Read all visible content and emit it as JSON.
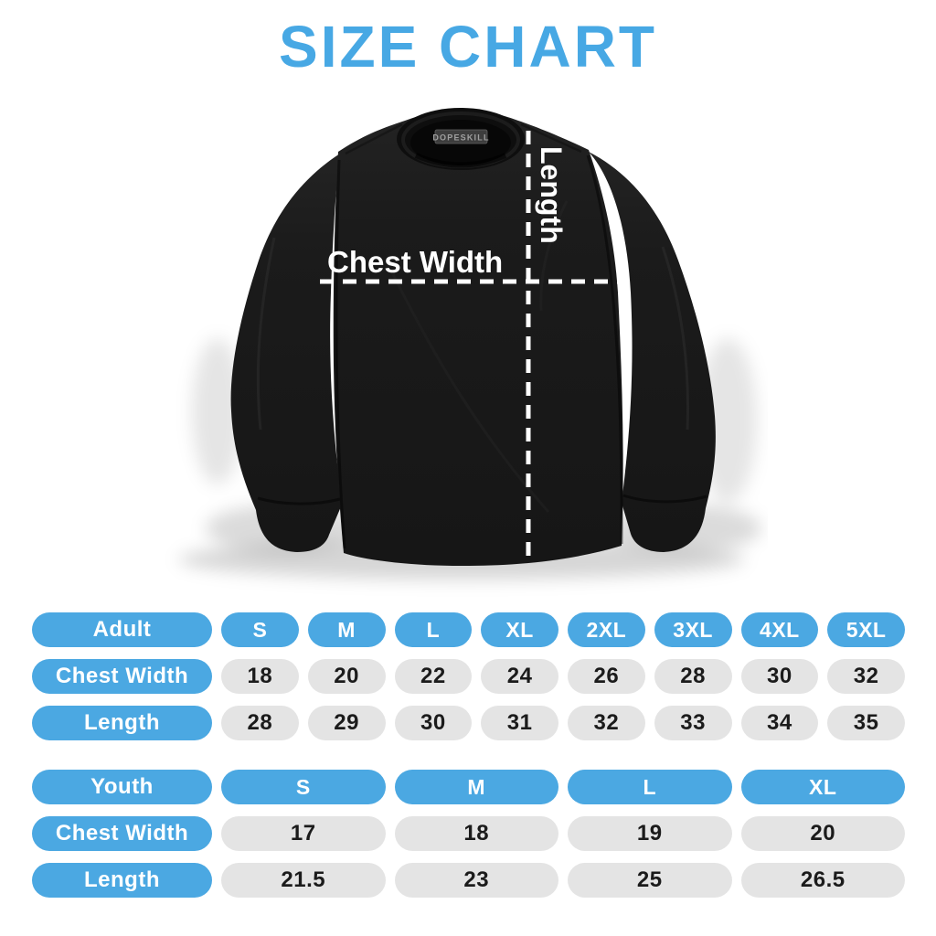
{
  "title": "SIZE CHART",
  "diagram": {
    "chest_width_label": "Chest Width",
    "length_label": "Length",
    "collar_tag": "DOPESKILL"
  },
  "colors": {
    "accent_blue": "#4BA8E2",
    "title_blue": "#47A8E4",
    "pill_gray": "#E4E4E4",
    "pill_text_dark": "#1B1B1B",
    "annotation_white": "#FFFFFF",
    "shirt_body": "#1A1A1A",
    "shirt_collar": "#0E0E0E"
  },
  "chart_data": [
    {
      "type": "table",
      "title": "Adult",
      "columns": [
        "S",
        "M",
        "L",
        "XL",
        "2XL",
        "3XL",
        "4XL",
        "5XL"
      ],
      "rows": [
        {
          "label": "Chest Width",
          "values": [
            18,
            20,
            22,
            24,
            26,
            28,
            30,
            32
          ]
        },
        {
          "label": "Length",
          "values": [
            28,
            29,
            30,
            31,
            32,
            33,
            34,
            35
          ]
        }
      ]
    },
    {
      "type": "table",
      "title": "Youth",
      "columns": [
        "S",
        "M",
        "L",
        "XL"
      ],
      "rows": [
        {
          "label": "Chest Width",
          "values": [
            17,
            18,
            19,
            20
          ]
        },
        {
          "label": "Length",
          "values": [
            21.5,
            23,
            25,
            26.5
          ]
        }
      ]
    }
  ]
}
